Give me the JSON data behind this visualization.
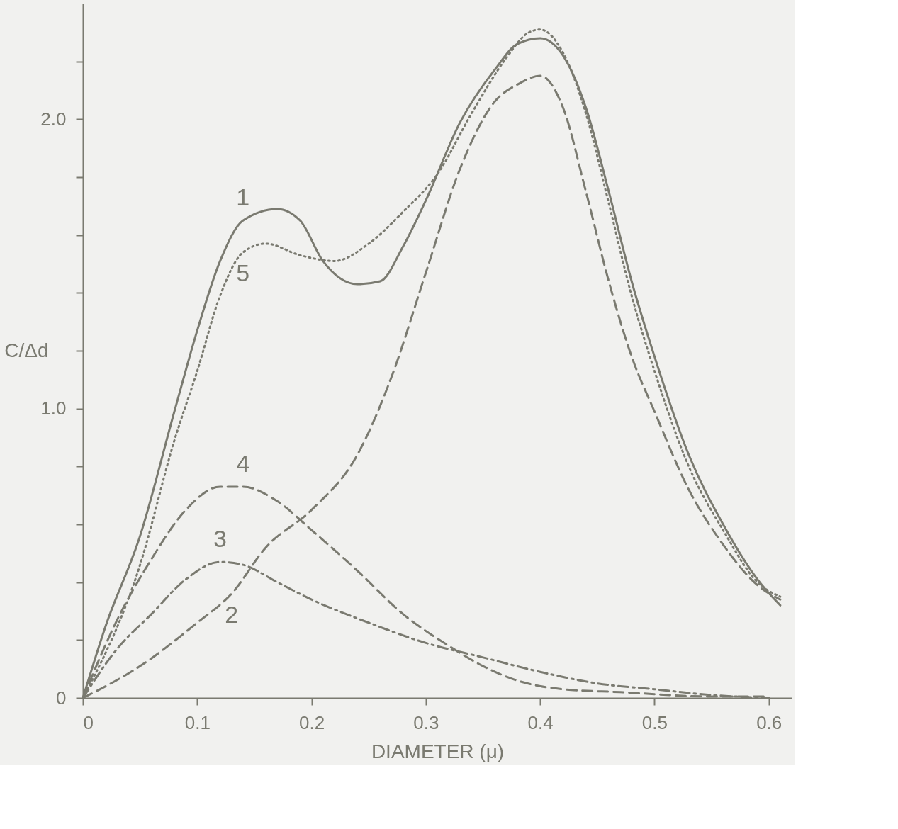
{
  "chart_data": {
    "type": "line",
    "xlabel": "DIAMETER (μ)",
    "ylabel": "C/Δd",
    "xlim": [
      0,
      0.62
    ],
    "ylim": [
      0,
      2.4
    ],
    "xticks": [
      0,
      0.1,
      0.2,
      0.3,
      0.4,
      0.5,
      0.6
    ],
    "yticks": [
      {
        "value": 0,
        "label": "0"
      },
      {
        "value": 0.2,
        "label": null
      },
      {
        "value": 0.4,
        "label": null
      },
      {
        "value": 0.6,
        "label": null
      },
      {
        "value": 0.8,
        "label": null
      },
      {
        "value": 1.0,
        "label": "1.0"
      },
      {
        "value": 1.2,
        "label": null
      },
      {
        "value": 1.4,
        "label": null
      },
      {
        "value": 1.6,
        "label": null
      },
      {
        "value": 1.8,
        "label": null
      },
      {
        "value": 2.0,
        "label": "2.0"
      },
      {
        "value": 2.2,
        "label": null
      }
    ],
    "grid": false,
    "marker": "none",
    "series": [
      {
        "color": "#7a7a70",
        "line_style": "solid",
        "x": [
          0,
          0.02,
          0.05,
          0.08,
          0.1,
          0.12,
          0.14,
          0.17,
          0.19,
          0.21,
          0.24,
          0.26,
          0.28,
          0.3,
          0.33,
          0.36,
          0.38,
          0.4,
          0.42,
          0.44,
          0.46,
          0.48,
          0.5,
          0.53,
          0.56,
          0.59,
          0.61
        ],
        "values": [
          0,
          0.25,
          0.56,
          0.99,
          1.27,
          1.51,
          1.65,
          1.69,
          1.65,
          1.51,
          1.43,
          1.44,
          1.56,
          1.72,
          1.99,
          2.17,
          2.26,
          2.28,
          2.22,
          2.04,
          1.75,
          1.44,
          1.18,
          0.84,
          0.6,
          0.41,
          0.32
        ]
      },
      {
        "color": "#7a7a70",
        "line_style": "dashed",
        "x": [
          0,
          0.05,
          0.1,
          0.13,
          0.16,
          0.2,
          0.24,
          0.27,
          0.3,
          0.33,
          0.36,
          0.38,
          0.4,
          0.42,
          0.44,
          0.46,
          0.48,
          0.5,
          0.53,
          0.56,
          0.59,
          0.61
        ],
        "values": [
          0,
          0.11,
          0.26,
          0.36,
          0.52,
          0.65,
          0.84,
          1.11,
          1.47,
          1.83,
          2.06,
          2.12,
          2.15,
          2.04,
          1.75,
          1.44,
          1.18,
          0.99,
          0.72,
          0.53,
          0.39,
          0.34
        ]
      },
      {
        "color": "#7a7a70",
        "line_style": "dashdot",
        "x": [
          0,
          0.03,
          0.06,
          0.09,
          0.12,
          0.14,
          0.17,
          0.2,
          0.25,
          0.3,
          0.35,
          0.4,
          0.45,
          0.5,
          0.55,
          0.6
        ],
        "values": [
          0,
          0.17,
          0.29,
          0.41,
          0.47,
          0.46,
          0.4,
          0.34,
          0.26,
          0.19,
          0.14,
          0.09,
          0.05,
          0.03,
          0.01,
          0
        ]
      },
      {
        "color": "#7a7a70",
        "line_style": "dashed",
        "x": [
          0,
          0.03,
          0.06,
          0.09,
          0.12,
          0.14,
          0.17,
          0.2,
          0.24,
          0.28,
          0.32,
          0.35,
          0.38,
          0.42,
          0.47,
          0.55,
          0.6
        ],
        "values": [
          0,
          0.27,
          0.48,
          0.65,
          0.73,
          0.73,
          0.68,
          0.58,
          0.44,
          0.29,
          0.18,
          0.11,
          0.06,
          0.03,
          0.02,
          0.005,
          0.005
        ]
      },
      {
        "color": "#7a7a70",
        "line_style": "dotted",
        "x": [
          0,
          0.05,
          0.08,
          0.1,
          0.12,
          0.14,
          0.16,
          0.19,
          0.22,
          0.25,
          0.28,
          0.31,
          0.34,
          0.37,
          0.39,
          0.4,
          0.42,
          0.44,
          0.46,
          0.48,
          0.5,
          0.53,
          0.56,
          0.59,
          0.61
        ],
        "values": [
          0,
          0.46,
          0.89,
          1.13,
          1.39,
          1.54,
          1.57,
          1.53,
          1.51,
          1.57,
          1.68,
          1.81,
          2.02,
          2.21,
          2.3,
          2.31,
          2.23,
          2.02,
          1.71,
          1.39,
          1.13,
          0.8,
          0.58,
          0.4,
          0.35
        ]
      }
    ],
    "annotations": [
      {
        "text": "1",
        "x": 0.14,
        "y": 1.65
      },
      {
        "text": "2",
        "x": 0.13,
        "y": 0.36
      },
      {
        "text": "3",
        "x": 0.12,
        "y": 0.47
      },
      {
        "text": "4",
        "x": 0.14,
        "y": 0.73
      },
      {
        "text": "5",
        "x": 0.14,
        "y": 1.54
      }
    ]
  }
}
